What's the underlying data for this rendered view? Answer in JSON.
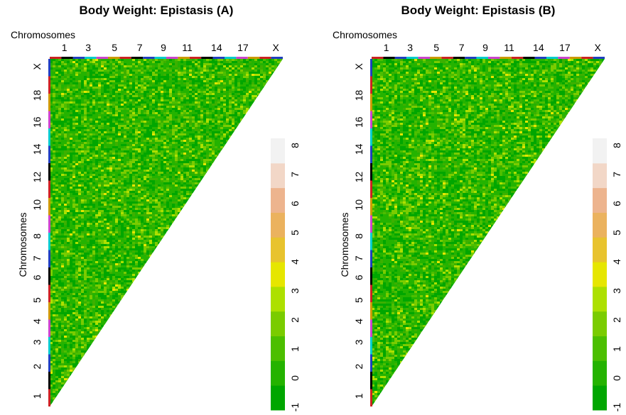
{
  "chart_data": [
    {
      "type": "heatmap",
      "title": "Body Weight: Epistasis (A)",
      "xlabel": "Chromosomes",
      "ylabel": "Chromosomes",
      "x_tick_labels": [
        "1",
        "3",
        "5",
        "7",
        "9",
        "11",
        "14",
        "17",
        "X"
      ],
      "y_tick_labels": [
        "1",
        "2",
        "3",
        "4",
        "5",
        "6",
        "7",
        "8",
        "10",
        "12",
        "14",
        "16",
        "18",
        "X"
      ],
      "chromosome_order": [
        "1",
        "2",
        "3",
        "4",
        "5",
        "6",
        "7",
        "8",
        "9",
        "10",
        "11",
        "12",
        "13",
        "14",
        "15",
        "16",
        "17",
        "18",
        "19",
        "X"
      ],
      "chromosome_colors": [
        "#cc2222",
        "#000000",
        "#1f3fbf",
        "#00cccc",
        "#cc44cc",
        "#cc9900",
        "#cc2222",
        "#000000",
        "#1f3fbf",
        "#00cccc",
        "#cc44cc",
        "#cc9900",
        "#cc2222",
        "#000000",
        "#1f3fbf",
        "#00cccc",
        "#cc44cc",
        "#cc9900",
        "#cc2222",
        "#1f3fbf"
      ],
      "colorbar": {
        "ticks": [
          -1,
          0,
          1,
          2,
          3,
          4,
          5,
          6,
          7,
          8
        ],
        "colors": [
          "#00a600",
          "#24b300",
          "#4cbf00",
          "#7acc00",
          "#ade000",
          "#e6e600",
          "#e8c32e",
          "#ebb25e",
          "#edb48e",
          "#f2d7c7",
          "#f2f2f2"
        ],
        "range": [
          -1,
          8
        ]
      },
      "shape": "upper-left triangle",
      "dominant_value_range": [
        -0.5,
        1
      ]
    },
    {
      "type": "heatmap",
      "title": "Body Weight: Epistasis (B)",
      "xlabel": "Chromosomes",
      "ylabel": "Chromosomes",
      "x_tick_labels": [
        "1",
        "3",
        "5",
        "7",
        "9",
        "11",
        "14",
        "17",
        "X"
      ],
      "y_tick_labels": [
        "1",
        "2",
        "3",
        "4",
        "5",
        "6",
        "7",
        "8",
        "10",
        "12",
        "14",
        "16",
        "18",
        "X"
      ],
      "chromosome_order": [
        "1",
        "2",
        "3",
        "4",
        "5",
        "6",
        "7",
        "8",
        "9",
        "10",
        "11",
        "12",
        "13",
        "14",
        "15",
        "16",
        "17",
        "18",
        "19",
        "X"
      ],
      "chromosome_colors": [
        "#cc2222",
        "#000000",
        "#1f3fbf",
        "#00cccc",
        "#cc44cc",
        "#cc9900",
        "#cc2222",
        "#000000",
        "#1f3fbf",
        "#00cccc",
        "#cc44cc",
        "#cc9900",
        "#cc2222",
        "#000000",
        "#1f3fbf",
        "#00cccc",
        "#cc44cc",
        "#cc9900",
        "#cc2222",
        "#1f3fbf"
      ],
      "colorbar": {
        "ticks": [
          -1,
          0,
          1,
          2,
          3,
          4,
          5,
          6,
          7,
          8
        ],
        "colors": [
          "#00a600",
          "#24b300",
          "#4cbf00",
          "#7acc00",
          "#ade000",
          "#e6e600",
          "#e8c32e",
          "#ebb25e",
          "#edb48e",
          "#f2d7c7",
          "#f2f2f2"
        ],
        "range": [
          -1,
          8
        ]
      },
      "shape": "upper-left triangle",
      "dominant_value_range": [
        -0.5,
        1
      ]
    }
  ]
}
